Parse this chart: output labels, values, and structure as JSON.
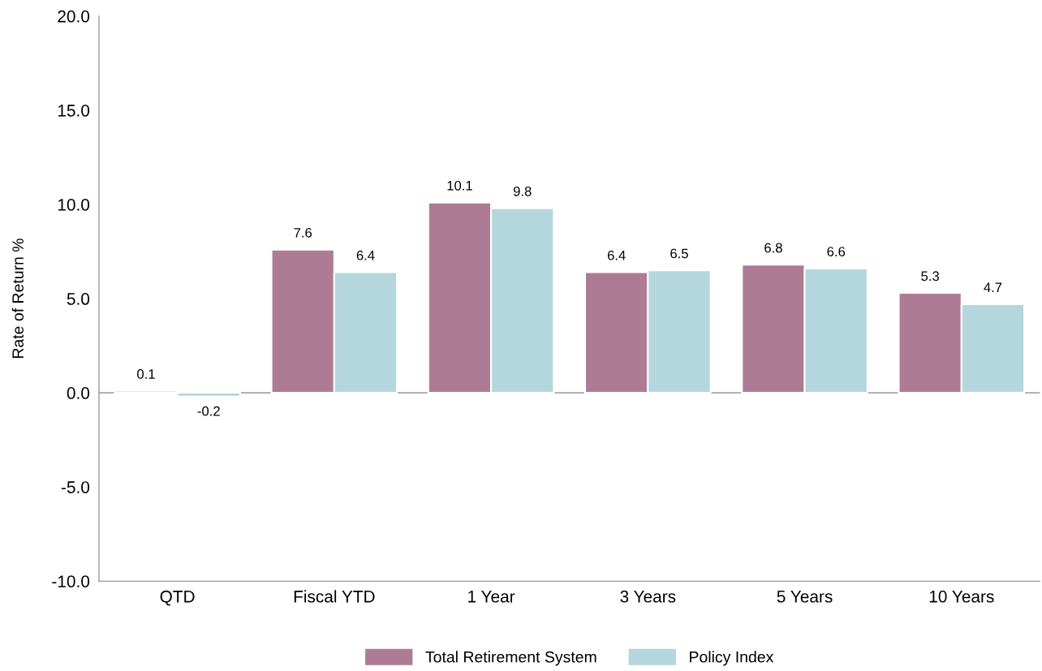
{
  "chart_data": {
    "type": "bar",
    "ylabel": "Rate of Return %",
    "categories": [
      "QTD",
      "Fiscal YTD",
      "1 Year",
      "3 Years",
      "5 Years",
      "10 Years"
    ],
    "series": [
      {
        "name": "Total Retirement System",
        "color": "#ad7c94",
        "values": [
          0.1,
          7.6,
          10.1,
          6.4,
          6.8,
          5.3
        ]
      },
      {
        "name": "Policy Index",
        "color": "#b3d7dd",
        "values": [
          -0.2,
          6.4,
          9.8,
          6.5,
          6.6,
          4.7
        ]
      }
    ],
    "ylim": [
      -10,
      20
    ],
    "yticks": [
      {
        "value": -10,
        "label": "-10.0"
      },
      {
        "value": -5,
        "label": "-5.0"
      },
      {
        "value": 0,
        "label": "0.0"
      },
      {
        "value": 5,
        "label": "5.0"
      },
      {
        "value": 10,
        "label": "10.0"
      },
      {
        "value": 15,
        "label": "15.0"
      },
      {
        "value": 20,
        "label": "20.0"
      }
    ],
    "ref_lines": [
      {
        "axis": "y",
        "value": 0,
        "color": "#808080"
      }
    ],
    "data_labels": true,
    "grid": false,
    "legend": "bottom"
  }
}
